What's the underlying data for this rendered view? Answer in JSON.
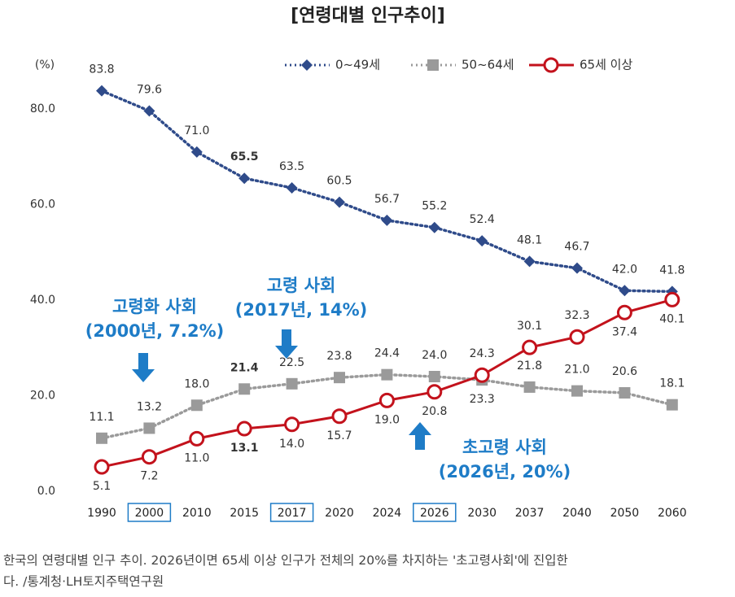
{
  "chart_data": {
    "type": "line",
    "title": "[연령대별 인구추이]",
    "y_unit": "(%)",
    "categories": [
      "1990",
      "2000",
      "2010",
      "2015",
      "2017",
      "2020",
      "2024",
      "2026",
      "2030",
      "2037",
      "2040",
      "2050",
      "2060"
    ],
    "boxed_category_indexes": [
      1,
      4,
      7
    ],
    "bold_label_index": 3,
    "ylim": [
      0,
      80
    ],
    "yticks": [
      {
        "value": 0,
        "label": "0.0"
      },
      {
        "value": 20,
        "label": "20.0"
      },
      {
        "value": 40,
        "label": "40.0"
      },
      {
        "value": 60,
        "label": "60.0"
      },
      {
        "value": 80,
        "label": "80.0"
      }
    ],
    "series": [
      {
        "name": "0~49세",
        "color": "#2f4b8a",
        "marker": "diamond",
        "dash": true,
        "values": [
          83.8,
          79.6,
          71.0,
          65.5,
          63.5,
          60.5,
          56.7,
          55.2,
          52.4,
          48.1,
          46.7,
          42.0,
          41.8
        ],
        "value_labels": [
          "83.8",
          "79.6",
          "71.0",
          "65.5",
          "63.5",
          "60.5",
          "56.7",
          "55.2",
          "52.4",
          "48.1",
          "46.7",
          "42.0",
          "41.8"
        ],
        "label_positions": [
          "above",
          "above",
          "above",
          "above",
          "above",
          "above",
          "above",
          "above",
          "above",
          "above",
          "above",
          "above",
          "above"
        ]
      },
      {
        "name": "50~64세",
        "color": "#9a9a9a",
        "marker": "square",
        "dash": true,
        "values": [
          11.1,
          13.2,
          18.0,
          21.4,
          22.5,
          23.8,
          24.4,
          24.0,
          23.3,
          21.8,
          21.0,
          20.6,
          18.1
        ],
        "value_labels": [
          "11.1",
          "13.2",
          "18.0",
          "21.4",
          "22.5",
          "23.8",
          "24.4",
          "24.0",
          "23.3",
          "21.8",
          "21.0",
          "20.6",
          "18.1"
        ],
        "label_positions": [
          "above",
          "above",
          "above",
          "above",
          "above",
          "above",
          "above",
          "above",
          "below",
          "above",
          "above",
          "above",
          "above"
        ]
      },
      {
        "name": "65세 이상",
        "color": "#c3121c",
        "marker": "circle",
        "dash": false,
        "values": [
          5.1,
          7.2,
          11.0,
          13.1,
          14.0,
          15.7,
          19.0,
          20.8,
          24.3,
          30.1,
          32.3,
          37.4,
          40.1
        ],
        "value_labels": [
          "5.1",
          "7.2",
          "11.0",
          "13.1",
          "14.0",
          "15.7",
          "19.0",
          "20.8",
          "24.3",
          "30.1",
          "32.3",
          "37.4",
          "40.1"
        ],
        "label_positions": [
          "below",
          "below",
          "below",
          "below",
          "below",
          "below",
          "below",
          "below",
          "above",
          "above",
          "above",
          "below",
          "below"
        ]
      }
    ],
    "annotations": [
      {
        "lines": [
          "고령화 사회",
          "(2000년, 7.2%)"
        ]
      },
      {
        "lines": [
          "고령 사회",
          "(2017년, 14%)"
        ]
      },
      {
        "lines": [
          "초고령 사회",
          "(2026년, 20%)"
        ]
      }
    ]
  },
  "caption": [
    "한국의 연령대별 인구 추이. 2026년이면 65세 이상 인구가 전체의 20%를 차지하는 '초고령사회'에 진입한",
    "다. /통계청·LH토지주택연구원"
  ]
}
